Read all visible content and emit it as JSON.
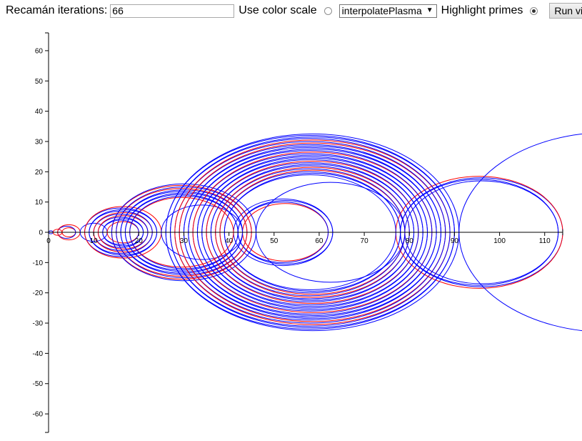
{
  "controls": {
    "iterations_label": "Recamán iterations:",
    "iterations_value": "66",
    "color_scale_label": "Use color scale",
    "color_scale_checked": false,
    "scale_selected": "interpolatePlasma",
    "highlight_label": "Highlight primes",
    "highlight_checked": true,
    "run_label": "Run viz"
  },
  "chart_data": {
    "type": "scatter",
    "description_kind": "recaman-arcs",
    "iterations": 66,
    "xlim": [
      0,
      114
    ],
    "ylim": [
      -66,
      66
    ],
    "x_ticks": [
      0,
      10,
      20,
      30,
      40,
      50,
      60,
      70,
      80,
      90,
      100,
      110
    ],
    "y_ticks": [
      60,
      50,
      40,
      30,
      20,
      10,
      0,
      -10,
      -20,
      -30,
      -40,
      -50,
      -60
    ],
    "colors": {
      "default": "#0000ff",
      "prime": "#ff0000",
      "axis": "#000000"
    }
  }
}
